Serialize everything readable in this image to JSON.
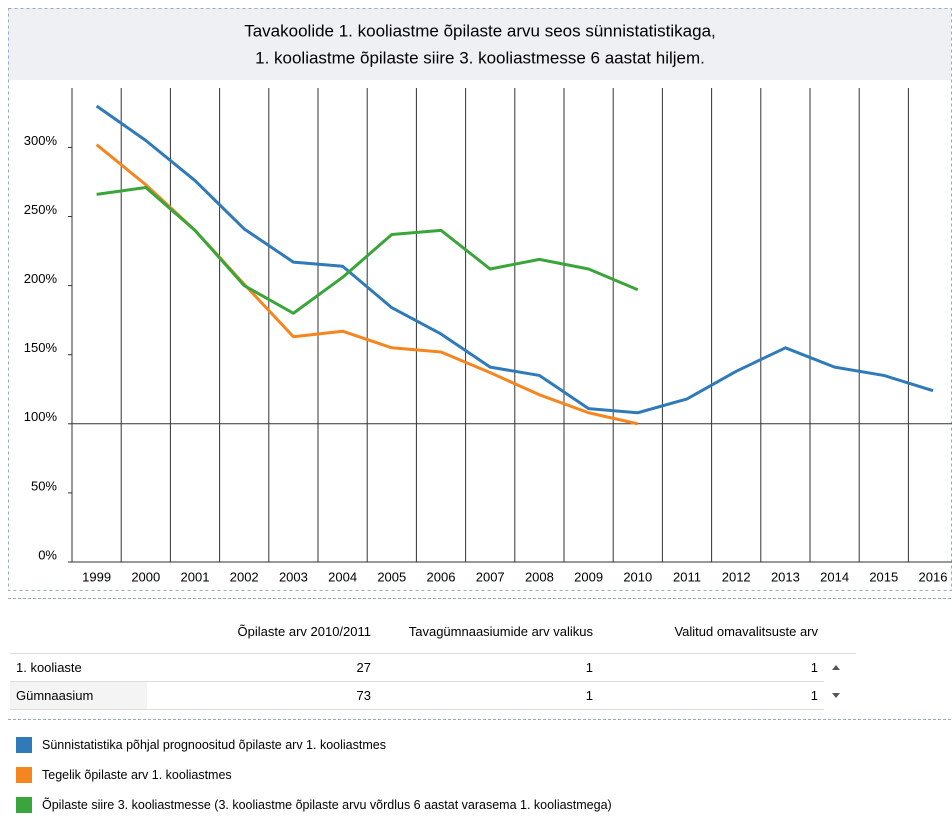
{
  "chart_data": {
    "type": "line",
    "title": [
      "Tavakoolide 1. kooliastme õpilaste arvu seos sünnistatistikaga,",
      "1. kooliastme õpilaste siire 3. kooliastmesse 6 aastat hiljem."
    ],
    "categories": [
      "1999",
      "2000",
      "2001",
      "2002",
      "2003",
      "2004",
      "2005",
      "2006",
      "2007",
      "2008",
      "2009",
      "2010",
      "2011",
      "2012",
      "2013",
      "2014",
      "2015",
      "2016"
    ],
    "series": [
      {
        "name": "Sünnistatistika põhjal prognoositud õpilaste arv 1. kooliastmes",
        "color": "#2f7ab8",
        "values": [
          330,
          305,
          276,
          241,
          217,
          214,
          184,
          165,
          141,
          135,
          111,
          108,
          118,
          138,
          155,
          141,
          135,
          124
        ]
      },
      {
        "name": "Tegelik õpilaste arv 1. kooliastmes",
        "color": "#f5861f",
        "values": [
          302,
          273,
          240,
          201,
          163,
          167,
          155,
          152,
          137,
          121,
          108,
          100,
          null,
          null,
          null,
          null,
          null,
          null
        ]
      },
      {
        "name": "Õpilaste siire 3. kooliastmesse (3. kooliastme õpilaste arvu võrdlus 6 aastat varasema 1. kooliastmega)",
        "color": "#3aa53a",
        "values": [
          266,
          271,
          240,
          200,
          180,
          206,
          237,
          240,
          212,
          219,
          212,
          197,
          null,
          null,
          null,
          null,
          null,
          null
        ]
      }
    ],
    "ylim": [
      0,
      343
    ],
    "yticks": [
      {
        "value": 0,
        "label": "0%"
      },
      {
        "value": 50,
        "label": "50%"
      },
      {
        "value": 100,
        "label": "100%"
      },
      {
        "value": 150,
        "label": "150%"
      },
      {
        "value": 200,
        "label": "200%"
      },
      {
        "value": 250,
        "label": "250%"
      },
      {
        "value": 300,
        "label": "300%"
      }
    ],
    "reference_line": 100
  },
  "table": {
    "header": [
      "Õpilaste arv 2010/2011",
      "Tavagümnaasiumide arv valikus",
      "Valitud omavalitsuste arv"
    ],
    "rows": [
      [
        "1. kooliaste",
        "27",
        "1",
        "1"
      ],
      [
        "Gümnaasium",
        "73",
        "1",
        "1"
      ]
    ]
  }
}
